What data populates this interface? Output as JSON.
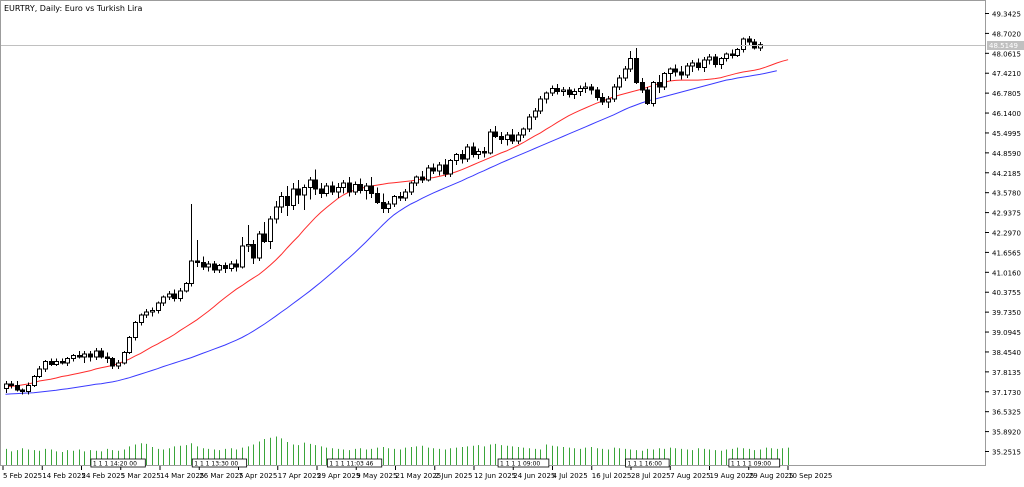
{
  "title": "EURTRY, Daily:  Euro vs Turkish Lira",
  "current_price_label": "48.5149",
  "colors": {
    "bg": "#ffffff",
    "frame": "#9c9c9c",
    "candle_body_up": "#ffffff",
    "candle_body_down": "#000000",
    "candle_outline": "#000000",
    "ma_fast": "#ff2b2b",
    "ma_slow": "#3a3aff",
    "volume": "#3aa53a",
    "price_line": "#c0c0c0",
    "price_tag_bg": "#c0c0c0",
    "time_marker_border": "#000000"
  },
  "chart_data": {
    "type": "candlestick",
    "symbol": "EURTRY",
    "timeframe": "Daily",
    "y_ticks": [
      "49.3425",
      "48.7020",
      "48.0615",
      "47.4210",
      "46.7805",
      "46.1400",
      "45.4995",
      "44.8590",
      "44.2185",
      "43.5780",
      "42.9375",
      "42.2970",
      "41.6565",
      "41.0160",
      "40.3755",
      "39.7350",
      "39.0945",
      "38.4540",
      "37.8135",
      "37.1730",
      "36.5325",
      "35.8920",
      "35.2515"
    ],
    "ylim": [
      34.95,
      49.55
    ],
    "x_labels": [
      "5 Feb 2025",
      "14 Feb 2025",
      "24 Feb 2025",
      "5 Mar 2025",
      "14 Mar 2025",
      "26 Mar 2025",
      "7 Apr 2025",
      "17 Apr 2025",
      "29 Apr 2025",
      "9 May 2025",
      "21 May 2025",
      "2 Jun 2025",
      "12 Jun 2025",
      "24 Jun 2025",
      "4 Jul 2025",
      "16 Jul 2025",
      "28 Jul 2025",
      "7 Aug 2025",
      "19 Aug 2025",
      "29 Aug 2025",
      "10 Sep 2025"
    ],
    "series": [
      {
        "name": "MA fast",
        "values": [
          37.1,
          37.12,
          37.14,
          37.17,
          37.2,
          37.24,
          37.3,
          37.33,
          37.36,
          37.4,
          37.45,
          37.48,
          37.52,
          37.56,
          37.6,
          37.64,
          37.7,
          37.74,
          37.78,
          37.82,
          37.88,
          37.95,
          38.03,
          38.13,
          38.22,
          38.33,
          38.44,
          38.53,
          38.64,
          38.74,
          38.85,
          38.98,
          39.1,
          39.22,
          39.34,
          39.48,
          39.62,
          39.77,
          39.93,
          40.08,
          40.22,
          40.36,
          40.48,
          40.61,
          40.73,
          40.85,
          41.0,
          41.16,
          41.33,
          41.52,
          41.73,
          41.93,
          42.12,
          42.34,
          42.54,
          42.74,
          42.92,
          43.08,
          43.23,
          43.38,
          43.5,
          43.6,
          43.66,
          43.72,
          43.76,
          43.8,
          43.83,
          43.86,
          43.89,
          43.91,
          43.93,
          43.95,
          43.97,
          44.0,
          44.03,
          44.06,
          44.08,
          44.12,
          44.16,
          44.21,
          44.27,
          44.34,
          44.42,
          44.5,
          44.58,
          44.66,
          44.74,
          44.82,
          44.9,
          44.97,
          45.06,
          45.15,
          45.25,
          45.36,
          45.47,
          45.57,
          45.69,
          45.8,
          45.92,
          46.03,
          46.14,
          46.23,
          46.32,
          46.4,
          46.48,
          46.56,
          46.63,
          46.7,
          46.77,
          46.83,
          46.88,
          46.93,
          46.98,
          47.03,
          47.09,
          47.15,
          47.21,
          47.26,
          47.3,
          47.32,
          47.33,
          47.33,
          47.33,
          47.33,
          47.34,
          47.36,
          47.38,
          47.41,
          47.46,
          47.51,
          47.56,
          47.6,
          47.63,
          47.66,
          47.7,
          47.76,
          47.83,
          47.9,
          47.96,
          48.01
        ]
      },
      {
        "name": "MA slow",
        "values": [
          36.86,
          36.87,
          36.88,
          36.89,
          36.9,
          36.91,
          36.93,
          36.95,
          36.97,
          36.99,
          37.02,
          37.04,
          37.07,
          37.1,
          37.13,
          37.16,
          37.19,
          37.21,
          37.24,
          37.27,
          37.31,
          37.36,
          37.41,
          37.47,
          37.53,
          37.59,
          37.65,
          37.71,
          37.78,
          37.84,
          37.9,
          37.96,
          38.02,
          38.08,
          38.15,
          38.22,
          38.29,
          38.36,
          38.43,
          38.5,
          38.58,
          38.66,
          38.75,
          38.85,
          38.96,
          39.08,
          39.2,
          39.33,
          39.46,
          39.6,
          39.73,
          39.87,
          40.01,
          40.15,
          40.29,
          40.44,
          40.59,
          40.75,
          40.91,
          41.07,
          41.24,
          41.4,
          41.57,
          41.75,
          41.93,
          42.12,
          42.31,
          42.5,
          42.68,
          42.84,
          42.97,
          43.09,
          43.2,
          43.29,
          43.39,
          43.48,
          43.57,
          43.65,
          43.73,
          43.81,
          43.89,
          43.97,
          44.06,
          44.14,
          44.23,
          44.31,
          44.4,
          44.48,
          44.57,
          44.65,
          44.73,
          44.81,
          44.89,
          44.97,
          45.05,
          45.13,
          45.21,
          45.29,
          45.37,
          45.45,
          45.53,
          45.61,
          45.69,
          45.77,
          45.85,
          45.93,
          46.01,
          46.09,
          46.17,
          46.26,
          46.35,
          46.43,
          46.5,
          46.57,
          46.63,
          46.68,
          46.73,
          46.78,
          46.83,
          46.88,
          46.93,
          46.98,
          47.03,
          47.08,
          47.13,
          47.18,
          47.23,
          47.28,
          47.33,
          47.36,
          47.4,
          47.43,
          47.46,
          47.49,
          47.52,
          47.56,
          47.6,
          47.64
        ]
      }
    ],
    "candles": [
      [
        37.05,
        37.3,
        36.9,
        37.2
      ],
      [
        37.2,
        37.3,
        37.05,
        37.15
      ],
      [
        37.15,
        37.3,
        36.95,
        37.0
      ],
      [
        37.0,
        37.05,
        36.85,
        36.95
      ],
      [
        36.95,
        37.25,
        36.85,
        37.15
      ],
      [
        37.15,
        37.5,
        37.1,
        37.45
      ],
      [
        37.45,
        37.8,
        37.4,
        37.7
      ],
      [
        37.7,
        38.0,
        37.6,
        37.95
      ],
      [
        37.95,
        38.05,
        37.8,
        37.85
      ],
      [
        37.85,
        38.05,
        37.8,
        37.95
      ],
      [
        37.95,
        38.05,
        37.85,
        37.9
      ],
      [
        37.9,
        38.1,
        37.8,
        38.05
      ],
      [
        38.05,
        38.2,
        37.95,
        38.15
      ],
      [
        38.15,
        38.3,
        38.05,
        38.1
      ],
      [
        38.1,
        38.3,
        37.9,
        38.2
      ],
      [
        38.2,
        38.3,
        37.95,
        38.1
      ],
      [
        38.1,
        38.4,
        38.0,
        38.3
      ],
      [
        38.3,
        38.4,
        38.05,
        38.1
      ],
      [
        38.1,
        38.25,
        37.9,
        38.05
      ],
      [
        38.05,
        38.1,
        37.7,
        37.8
      ],
      [
        37.8,
        38.0,
        37.7,
        37.9
      ],
      [
        37.9,
        38.3,
        37.85,
        38.25
      ],
      [
        38.25,
        38.8,
        38.2,
        38.75
      ],
      [
        38.75,
        39.3,
        38.65,
        39.25
      ],
      [
        39.25,
        39.55,
        39.15,
        39.5
      ],
      [
        39.5,
        39.7,
        39.4,
        39.6
      ],
      [
        39.6,
        39.75,
        39.45,
        39.65
      ],
      [
        39.65,
        39.95,
        39.55,
        39.9
      ],
      [
        39.9,
        40.15,
        39.8,
        40.1
      ],
      [
        40.1,
        40.3,
        40.0,
        40.2
      ],
      [
        40.2,
        40.35,
        39.95,
        40.05
      ],
      [
        40.05,
        40.4,
        39.95,
        40.3
      ],
      [
        40.3,
        40.6,
        40.25,
        40.55
      ],
      [
        40.55,
        43.2,
        40.45,
        41.3
      ],
      [
        41.3,
        42.0,
        41.1,
        41.25
      ],
      [
        41.25,
        41.45,
        41.0,
        41.1
      ],
      [
        41.1,
        41.3,
        40.95,
        41.2
      ],
      [
        41.2,
        41.3,
        40.9,
        41.0
      ],
      [
        41.0,
        41.2,
        40.9,
        41.15
      ],
      [
        41.15,
        41.25,
        40.9,
        41.05
      ],
      [
        41.05,
        41.3,
        40.95,
        41.2
      ],
      [
        41.2,
        41.35,
        40.95,
        41.1
      ],
      [
        41.1,
        42.1,
        41.05,
        41.8
      ],
      [
        41.8,
        42.5,
        41.6,
        41.85
      ],
      [
        41.85,
        42.0,
        41.2,
        41.4
      ],
      [
        41.4,
        42.3,
        41.3,
        42.2
      ],
      [
        42.2,
        42.6,
        41.9,
        41.95
      ],
      [
        41.95,
        42.8,
        41.7,
        42.7
      ],
      [
        42.7,
        43.3,
        42.55,
        43.1
      ],
      [
        43.1,
        43.6,
        42.9,
        43.45
      ],
      [
        43.45,
        43.8,
        42.8,
        43.15
      ],
      [
        43.15,
        43.9,
        43.0,
        43.7
      ],
      [
        43.7,
        44.0,
        43.2,
        43.5
      ],
      [
        43.5,
        43.85,
        43.0,
        43.75
      ],
      [
        43.75,
        44.1,
        43.35,
        44.0
      ],
      [
        44.0,
        44.35,
        43.5,
        43.7
      ],
      [
        43.7,
        43.9,
        43.4,
        43.55
      ],
      [
        43.55,
        43.9,
        43.45,
        43.8
      ],
      [
        43.8,
        43.95,
        43.5,
        43.6
      ],
      [
        43.6,
        43.9,
        43.4,
        43.75
      ],
      [
        43.75,
        44.0,
        43.55,
        43.9
      ],
      [
        43.9,
        44.1,
        43.45,
        43.6
      ],
      [
        43.6,
        43.95,
        43.5,
        43.85
      ],
      [
        43.85,
        44.05,
        43.55,
        43.65
      ],
      [
        43.65,
        43.9,
        43.35,
        43.8
      ],
      [
        43.8,
        44.1,
        43.4,
        43.55
      ],
      [
        43.55,
        43.75,
        43.2,
        43.25
      ],
      [
        43.25,
        43.55,
        42.9,
        43.05
      ],
      [
        43.05,
        43.3,
        42.9,
        43.2
      ],
      [
        43.2,
        43.5,
        43.1,
        43.45
      ],
      [
        43.45,
        43.6,
        43.3,
        43.4
      ],
      [
        43.4,
        43.7,
        43.3,
        43.6
      ],
      [
        43.6,
        43.95,
        43.5,
        43.9
      ],
      [
        43.9,
        44.15,
        43.8,
        44.1
      ],
      [
        44.1,
        44.3,
        43.9,
        44.0
      ],
      [
        44.0,
        44.5,
        43.95,
        44.4
      ],
      [
        44.4,
        44.55,
        44.2,
        44.3
      ],
      [
        44.3,
        44.6,
        44.15,
        44.5
      ],
      [
        44.5,
        44.7,
        44.1,
        44.2
      ],
      [
        44.2,
        44.7,
        44.1,
        44.65
      ],
      [
        44.65,
        44.9,
        44.5,
        44.85
      ],
      [
        44.85,
        45.0,
        44.55,
        44.7
      ],
      [
        44.7,
        45.2,
        44.6,
        45.1
      ],
      [
        45.1,
        45.25,
        44.75,
        44.85
      ],
      [
        44.85,
        45.05,
        44.7,
        44.95
      ],
      [
        44.95,
        45.1,
        44.75,
        44.9
      ],
      [
        44.9,
        45.7,
        44.85,
        45.6
      ],
      [
        45.6,
        45.8,
        45.4,
        45.45
      ],
      [
        45.45,
        45.6,
        45.2,
        45.35
      ],
      [
        45.35,
        45.6,
        45.15,
        45.5
      ],
      [
        45.5,
        45.7,
        45.2,
        45.3
      ],
      [
        45.3,
        45.6,
        45.2,
        45.5
      ],
      [
        45.5,
        45.75,
        45.4,
        45.7
      ],
      [
        45.7,
        46.2,
        45.6,
        46.1
      ],
      [
        46.1,
        46.4,
        46.0,
        46.3
      ],
      [
        46.3,
        46.8,
        46.2,
        46.7
      ],
      [
        46.7,
        46.95,
        46.55,
        46.9
      ],
      [
        46.9,
        47.15,
        46.8,
        47.05
      ],
      [
        47.05,
        47.2,
        46.85,
        46.95
      ],
      [
        46.95,
        47.1,
        46.8,
        47.0
      ],
      [
        47.0,
        47.1,
        46.75,
        46.85
      ],
      [
        46.85,
        47.05,
        46.7,
        46.95
      ],
      [
        46.95,
        47.15,
        46.8,
        47.05
      ],
      [
        47.05,
        47.25,
        46.9,
        47.1
      ],
      [
        47.1,
        47.2,
        46.85,
        47.0
      ],
      [
        47.0,
        47.1,
        46.65,
        46.75
      ],
      [
        46.75,
        46.9,
        46.5,
        46.6
      ],
      [
        46.6,
        46.8,
        46.4,
        46.7
      ],
      [
        46.7,
        47.2,
        46.6,
        47.1
      ],
      [
        47.1,
        47.5,
        47.0,
        47.4
      ],
      [
        47.4,
        47.8,
        47.3,
        47.7
      ],
      [
        47.7,
        48.3,
        47.6,
        48.05
      ],
      [
        48.05,
        48.4,
        47.2,
        47.25
      ],
      [
        47.25,
        47.4,
        46.9,
        47.0
      ],
      [
        47.0,
        47.1,
        46.5,
        46.55
      ],
      [
        46.55,
        47.3,
        46.45,
        47.25
      ],
      [
        47.25,
        47.5,
        46.9,
        47.1
      ],
      [
        47.1,
        47.6,
        47.0,
        47.55
      ],
      [
        47.55,
        47.75,
        47.3,
        47.7
      ],
      [
        47.7,
        47.85,
        47.45,
        47.6
      ],
      [
        47.6,
        47.8,
        47.35,
        47.5
      ],
      [
        47.5,
        47.9,
        47.4,
        47.8
      ],
      [
        47.8,
        48.0,
        47.6,
        47.9
      ],
      [
        47.9,
        48.05,
        47.65,
        47.75
      ],
      [
        47.75,
        48.1,
        47.6,
        48.0
      ],
      [
        48.0,
        48.2,
        47.85,
        48.1
      ],
      [
        48.1,
        48.2,
        47.75,
        47.85
      ],
      [
        47.85,
        48.1,
        47.7,
        48.05
      ],
      [
        48.05,
        48.25,
        47.95,
        48.2
      ],
      [
        48.2,
        48.35,
        48.05,
        48.15
      ],
      [
        48.15,
        48.4,
        48.1,
        48.35
      ],
      [
        48.35,
        48.75,
        48.25,
        48.7
      ],
      [
        48.7,
        48.8,
        48.5,
        48.6
      ],
      [
        48.6,
        48.7,
        48.35,
        48.4
      ],
      [
        48.4,
        48.6,
        48.3,
        48.51
      ]
    ],
    "volumes": [
      26,
      22,
      24,
      27,
      25,
      24,
      23,
      26,
      25,
      22,
      21,
      24,
      23,
      25,
      22,
      24,
      23,
      22,
      26,
      24,
      23,
      25,
      30,
      33,
      35,
      34,
      29,
      26,
      25,
      27,
      30,
      31,
      32,
      35,
      30,
      27,
      26,
      25,
      24,
      26,
      27,
      25,
      28,
      30,
      33,
      38,
      42,
      44,
      46,
      43,
      37,
      33,
      32,
      36,
      34,
      32,
      30,
      28,
      27,
      26,
      25,
      24,
      26,
      27,
      25,
      26,
      28,
      29,
      27,
      26,
      25,
      28,
      29,
      30,
      31,
      28,
      27,
      26,
      25,
      27,
      28,
      29,
      30,
      31,
      32,
      30,
      33,
      34,
      32,
      31,
      30,
      29,
      28,
      27,
      26,
      25,
      33,
      31,
      30,
      29,
      28,
      27,
      26,
      28,
      29,
      27,
      26,
      25,
      28,
      27,
      26,
      25,
      24,
      23,
      26,
      25,
      27,
      26,
      28,
      27,
      26,
      25,
      24,
      27,
      26,
      25,
      24,
      23,
      25,
      26,
      28,
      27,
      26,
      24,
      25,
      28,
      27,
      26,
      27,
      28
    ],
    "time_markers": [
      {
        "text": "1 1 1 14:20 00",
        "candle": 20
      },
      {
        "text": "1 1 1 13:30 00",
        "candle": 38
      },
      {
        "text": "1 1 1 11:03 46",
        "candle": 62
      },
      {
        "text": "1 1 1 1 09:00",
        "candle": 92
      },
      {
        "text": "1 1 1 16:00",
        "candle": 114
      },
      {
        "text": "1 1 1 1 09:00",
        "candle": 133
      }
    ]
  }
}
